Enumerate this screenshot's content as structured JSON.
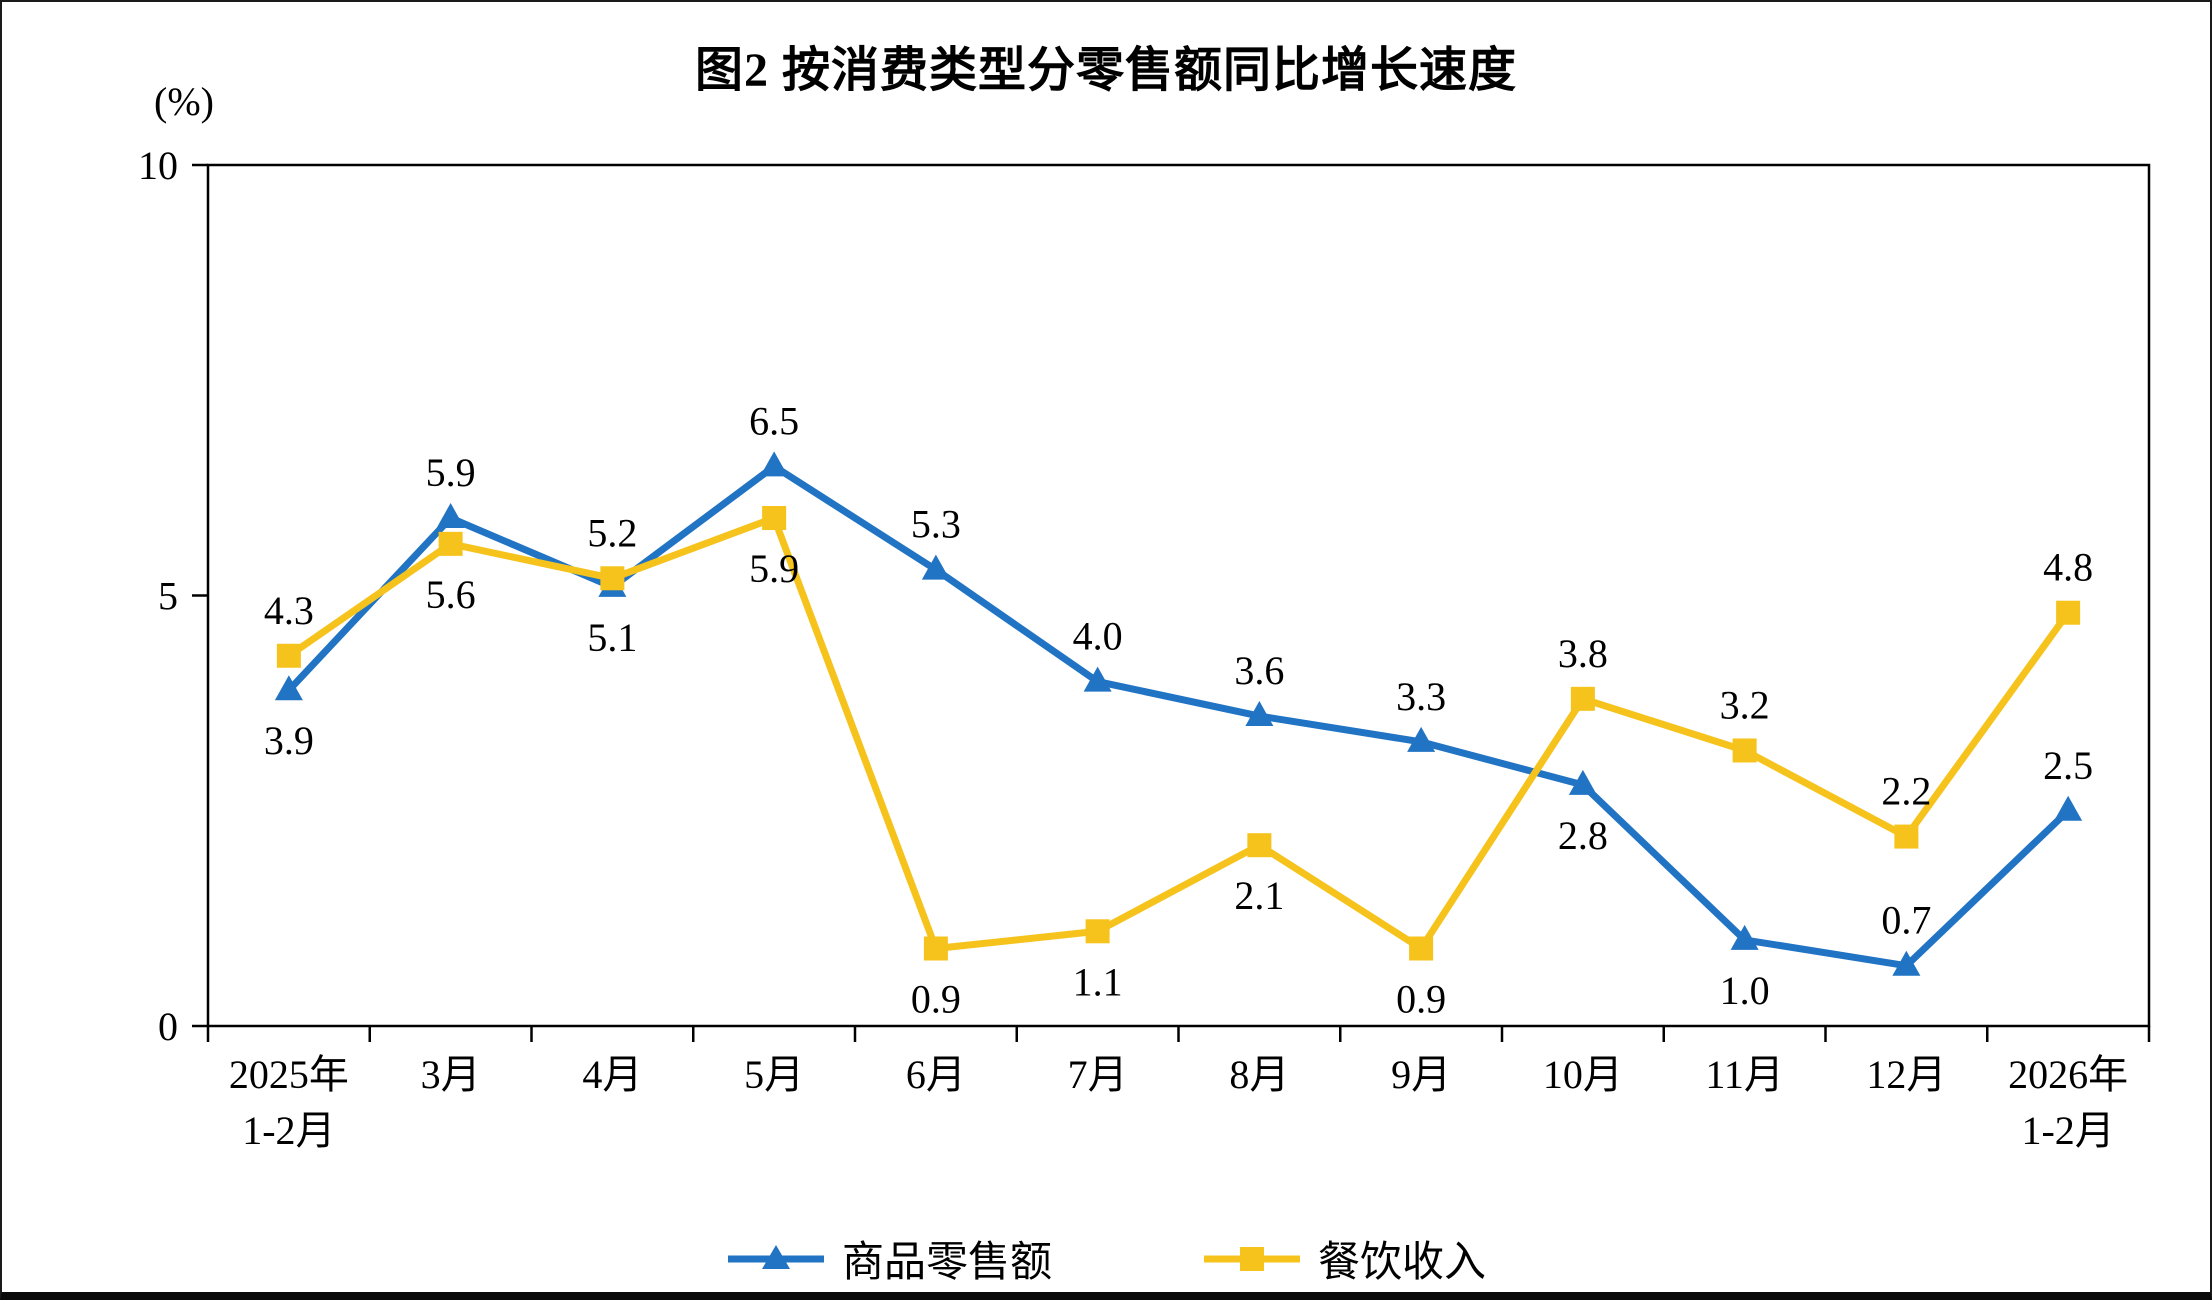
{
  "chart_data": {
    "type": "line",
    "title": "图2 按消费类型分零售额同比增长速度",
    "unit_label": "(%)",
    "ylim": [
      0,
      10
    ],
    "yticks": [
      0,
      5,
      10
    ],
    "grid": false,
    "legend_position": "bottom",
    "categories": [
      [
        "2025年",
        "1-2月"
      ],
      [
        "3月"
      ],
      [
        "4月"
      ],
      [
        "5月"
      ],
      [
        "6月"
      ],
      [
        "7月"
      ],
      [
        "8月"
      ],
      [
        "9月"
      ],
      [
        "10月"
      ],
      [
        "11月"
      ],
      [
        "12月"
      ],
      [
        "2026年",
        "1-2月"
      ]
    ],
    "series": [
      {
        "name": "商品零售额",
        "color": "#2173C4",
        "marker": "triangle",
        "values": [
          3.9,
          5.9,
          5.1,
          6.5,
          5.3,
          4.0,
          3.6,
          3.3,
          2.8,
          1.0,
          0.7,
          2.5
        ],
        "label_pos": [
          "below",
          "above",
          "below",
          "above",
          "above",
          "above",
          "above",
          "above",
          "below",
          "below",
          "above",
          "above"
        ]
      },
      {
        "name": "餐饮收入",
        "color": "#F5C31B",
        "marker": "square",
        "values": [
          4.3,
          5.6,
          5.2,
          5.9,
          0.9,
          1.1,
          2.1,
          0.9,
          3.8,
          3.2,
          2.2,
          4.8
        ],
        "label_pos": [
          "above",
          "below",
          "above",
          "below",
          "below",
          "below",
          "below",
          "below",
          "above",
          "above",
          "above",
          "above"
        ]
      }
    ]
  }
}
